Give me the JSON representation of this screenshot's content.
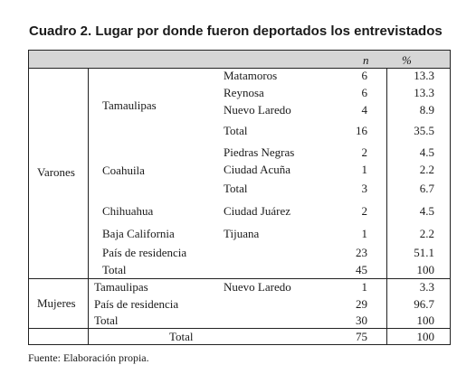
{
  "title": "Cuadro 2. Lugar por donde fueron deportados los entrevistados",
  "headers": {
    "n": "n",
    "pct": "%"
  },
  "varones": {
    "label": "Varones",
    "tamaulipas": {
      "state": "Tamaulipas",
      "rows": [
        {
          "city": "Matamoros",
          "n": "6",
          "pct": "13.3"
        },
        {
          "city": "Reynosa",
          "n": "6",
          "pct": "13.3"
        },
        {
          "city": "Nuevo Laredo",
          "n": "4",
          "pct": "8.9"
        },
        {
          "city": "Total",
          "n": "16",
          "pct": "35.5"
        }
      ]
    },
    "coahuila": {
      "state": "Coahuila",
      "rows": [
        {
          "city": "Piedras Negras",
          "n": "2",
          "pct": "4.5"
        },
        {
          "city": "Ciudad Acuña",
          "n": "1",
          "pct": "2.2"
        },
        {
          "city": "Total",
          "n": "3",
          "pct": "6.7"
        }
      ]
    },
    "chihuahua": {
      "state": "Chihuahua",
      "city": "Ciudad Juárez",
      "n": "2",
      "pct": "4.5"
    },
    "baja": {
      "state": "Baja California",
      "city": "Tijuana",
      "n": "1",
      "pct": "2.2"
    },
    "residencia": {
      "label": "País de residencia",
      "n": "23",
      "pct": "51.1"
    },
    "total": {
      "label": "Total",
      "n": "45",
      "pct": "100"
    }
  },
  "mujeres": {
    "label": "Mujeres",
    "tamaulipas": {
      "state": "Tamaulipas",
      "city": "Nuevo Laredo",
      "n": "1",
      "pct": "3.3"
    },
    "residencia": {
      "label": "País de residencia",
      "n": "29",
      "pct": "96.7"
    },
    "total": {
      "label": "Total",
      "n": "30",
      "pct": "100"
    }
  },
  "grand_total": {
    "label": "Total",
    "n": "75",
    "pct": "100"
  },
  "source": "Fuente: Elaboración propia."
}
